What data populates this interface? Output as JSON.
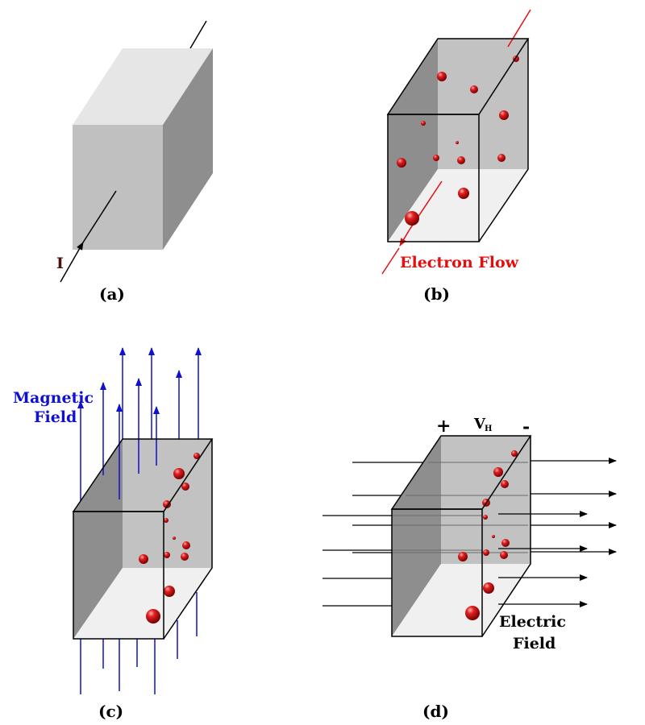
{
  "panels": [
    {
      "id": "a",
      "caption": "(a)",
      "current_label": "I"
    },
    {
      "id": "b",
      "caption": "(b)",
      "flow_label": "Electron Flow"
    },
    {
      "id": "c",
      "caption": "(c)",
      "field_label_line1": "Magnetic",
      "field_label_line2": "Field"
    },
    {
      "id": "d",
      "caption": "(d)",
      "plus": "+",
      "minus": "-",
      "voltage_main": "V",
      "voltage_sub": "H",
      "field_label_line1": "Electric",
      "field_label_line2": "Field"
    }
  ],
  "colors": {
    "current_arrow": "#000000",
    "electron_flow": "#e01010",
    "magnetic_field": "#1010d0",
    "electric_field": "#000000",
    "electron": "#d01010"
  }
}
